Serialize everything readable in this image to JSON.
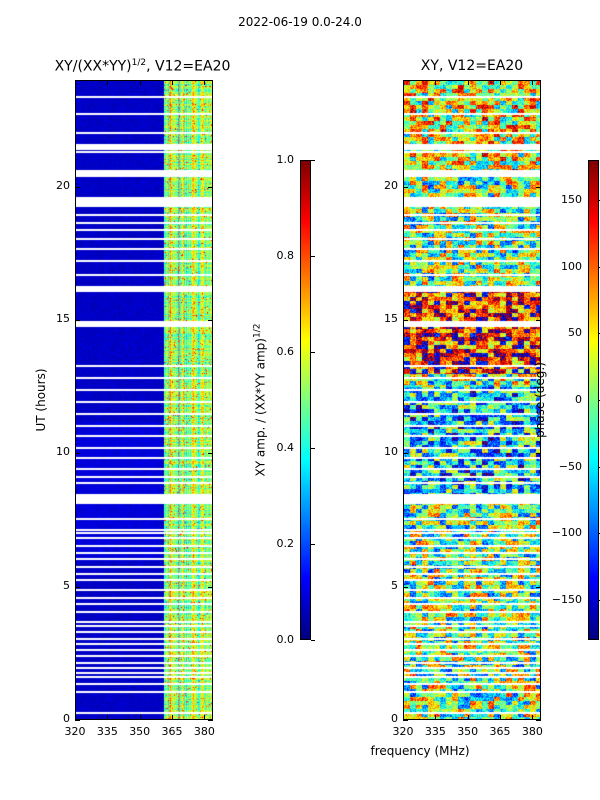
{
  "figure": {
    "suptitle": "2022-06-19 0.0-24.0",
    "shared_xlabel": "frequency (MHz)"
  },
  "colors": {
    "jet": [
      "#00007f",
      "#0000ff",
      "#007fff",
      "#00ffff",
      "#7fff7f",
      "#ffff00",
      "#ff7f00",
      "#ff0000",
      "#7f0000"
    ],
    "gap": "#ffffff"
  },
  "chart_data": [
    {
      "type": "heatmap",
      "title_prefix": "XY/(XX*YY)",
      "title_sup": "1/2",
      "title_suffix": ", V12=EA20",
      "ylabel": "UT (hours)",
      "xlim": [
        320,
        384
      ],
      "ylim": [
        0,
        24
      ],
      "xticks": [
        320,
        335,
        350,
        365,
        380
      ],
      "xtick_labels": [
        "320",
        "335",
        "350",
        "365",
        "380"
      ],
      "yticks": [
        0,
        5,
        10,
        15,
        20
      ],
      "ytick_labels": [
        "0",
        "5",
        "10",
        "15",
        "20"
      ],
      "colorbar": {
        "label_prefix": "XY amp. / (XX*YY amp)",
        "label_sup": "1/2",
        "range": [
          0.0,
          1.0
        ],
        "ticks": [
          0.0,
          0.2,
          0.4,
          0.6,
          0.8,
          1.0
        ],
        "tick_labels": [
          "0.0",
          "0.2",
          "0.4",
          "0.6",
          "0.8",
          "1.0"
        ]
      },
      "description_of_values": "mostly ~0.05 (dark blue) below 360 MHz; bright band ~0.3-0.7 between 361 and 384 MHz",
      "band_low_mhz": 361
    },
    {
      "type": "heatmap",
      "title": "XY, V12=EA20",
      "ylabel": "",
      "xlim": [
        320,
        384
      ],
      "ylim": [
        0,
        24
      ],
      "xticks": [
        320,
        335,
        350,
        365,
        380
      ],
      "xtick_labels": [
        "320",
        "335",
        "350",
        "365",
        "380"
      ],
      "yticks": [
        0,
        5,
        10,
        15,
        20
      ],
      "ytick_labels": [
        "0",
        "5",
        "10",
        "15",
        "20"
      ],
      "colorbar": {
        "label": "phase (deg.)",
        "range": [
          -180,
          180
        ],
        "ticks": [
          -150,
          -100,
          -50,
          0,
          50,
          100,
          150
        ],
        "tick_labels": [
          "−150",
          "−100",
          "−50",
          "0",
          "50",
          "100",
          "150"
        ]
      },
      "description_of_values": "noisy phase, warm (~100-180 deg) from 13-16 h and scattered, cooler blocks near 8-12 h"
    }
  ],
  "gaps_hours": [
    0.25,
    1.05,
    1.35,
    1.6,
    1.75,
    1.95,
    2.15,
    2.4,
    2.65,
    2.85,
    3.05,
    3.3,
    3.55,
    3.7,
    4.05,
    4.35,
    4.6,
    4.9,
    5.25,
    5.5,
    5.75,
    6.05,
    6.3,
    6.55,
    6.85,
    7.05,
    7.15,
    7.55,
    8.15,
    8.25,
    8.45,
    8.9,
    9.15,
    9.45,
    9.85,
    10.25,
    10.7,
    11.05,
    11.5,
    11.95,
    12.4,
    12.85,
    13.3,
    14.85,
    14.95,
    16.15,
    16.75,
    17.25,
    17.7,
    18.1,
    18.45,
    18.7,
    19.0,
    19.35,
    19.65,
    20.65,
    21.35,
    21.6,
    22.1,
    22.8,
    23.45
  ],
  "gaps_thick_hours": [
    8.35,
    14.9,
    16.2,
    19.5,
    20.55,
    21.55
  ]
}
